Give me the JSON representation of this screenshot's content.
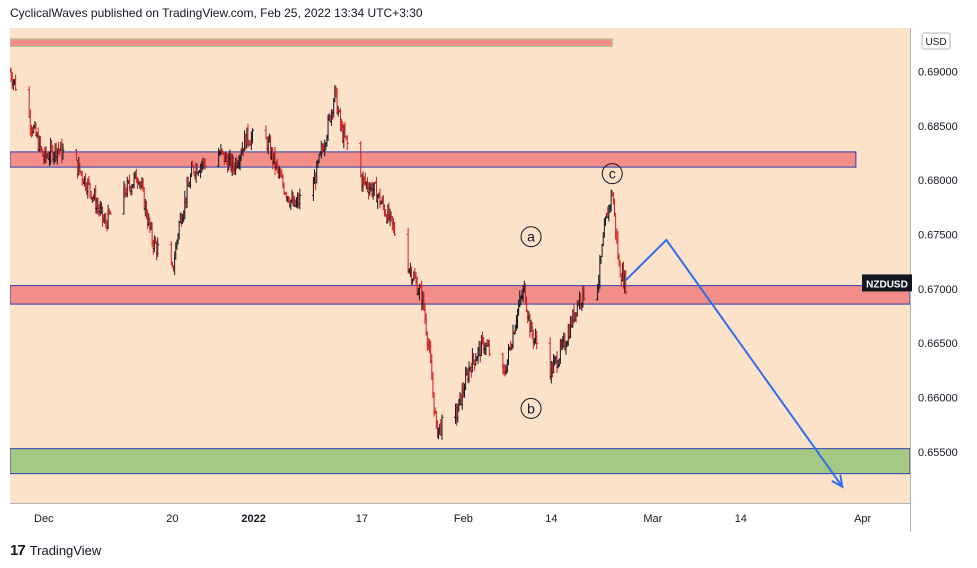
{
  "header": {
    "text": "CyclicalWaves published on TradingView.com, Feb 25, 2022 13:34 UTC+3:30"
  },
  "footer": {
    "brand": "TradingView",
    "logo_icon": "tradingview-logo-icon"
  },
  "colors": {
    "background": "#fbe2c8",
    "candle_up": "#131722",
    "candle_down": "#d21d1d",
    "resistance_zone": "#f28e87",
    "support_zone": "#a5c985",
    "zone_border": "#2c3cb3",
    "projection": "#2f6fef",
    "price_label_bg": "#131722"
  },
  "chart_data": {
    "type": "candlestick",
    "symbol_label": "NZDUSD",
    "currency_label": "USD",
    "y_ticks": [
      "0.69000",
      "0.68500",
      "0.68000",
      "0.67500",
      "0.67000",
      "0.66500",
      "0.66000",
      "0.65500"
    ],
    "ylim": [
      0.6503,
      0.694
    ],
    "x_ticks": [
      {
        "label": "Dec",
        "date": "2021-12-01"
      },
      {
        "label": "20",
        "date": "2021-12-20"
      },
      {
        "label": "2022",
        "date": "2022-01-01"
      },
      {
        "label": "17",
        "date": "2022-01-17"
      },
      {
        "label": "Feb",
        "date": "2022-02-01"
      },
      {
        "label": "14",
        "date": "2022-02-14"
      },
      {
        "label": "Mar",
        "date": "2022-03-01"
      },
      {
        "label": "14",
        "date": "2022-03-14"
      },
      {
        "label": "Apr",
        "date": "2022-04-01"
      }
    ],
    "xlim": [
      "2021-11-26",
      "2022-04-08"
    ],
    "price_path": [
      [
        "2021-11-26",
        0.69
      ],
      [
        "2021-11-29",
        0.6855
      ],
      [
        "2021-12-01",
        0.682
      ],
      [
        "2021-12-03",
        0.683
      ],
      [
        "2021-12-06",
        0.6812
      ],
      [
        "2021-12-08",
        0.679
      ],
      [
        "2021-12-10",
        0.676
      ],
      [
        "2021-12-13",
        0.679
      ],
      [
        "2021-12-15",
        0.6805
      ],
      [
        "2021-12-16",
        0.6775
      ],
      [
        "2021-12-17",
        0.6745
      ],
      [
        "2021-12-20",
        0.6715
      ],
      [
        "2021-12-21",
        0.676
      ],
      [
        "2021-12-23",
        0.681
      ],
      [
        "2021-12-27",
        0.6825
      ],
      [
        "2021-12-29",
        0.6812
      ],
      [
        "2021-12-31",
        0.684
      ],
      [
        "2022-01-03",
        0.6835
      ],
      [
        "2022-01-05",
        0.68
      ],
      [
        "2022-01-07",
        0.6775
      ],
      [
        "2022-01-10",
        0.68
      ],
      [
        "2022-01-12",
        0.685
      ],
      [
        "2022-01-13",
        0.688
      ],
      [
        "2022-01-14",
        0.6845
      ],
      [
        "2022-01-17",
        0.68
      ],
      [
        "2022-01-19",
        0.679
      ],
      [
        "2022-01-21",
        0.6765
      ],
      [
        "2022-01-24",
        0.672
      ],
      [
        "2022-01-26",
        0.669
      ],
      [
        "2022-01-27",
        0.664
      ],
      [
        "2022-01-28",
        0.657
      ],
      [
        "2022-01-31",
        0.6585
      ],
      [
        "2022-02-02",
        0.663
      ],
      [
        "2022-02-04",
        0.665
      ],
      [
        "2022-02-07",
        0.662
      ],
      [
        "2022-02-09",
        0.668
      ],
      [
        "2022-02-10",
        0.67
      ],
      [
        "2022-02-11",
        0.666
      ],
      [
        "2022-02-14",
        0.6625
      ],
      [
        "2022-02-16",
        0.665
      ],
      [
        "2022-02-18",
        0.669
      ],
      [
        "2022-02-21",
        0.671
      ],
      [
        "2022-02-22",
        0.676
      ],
      [
        "2022-02-23",
        0.679
      ],
      [
        "2022-02-24",
        0.672
      ],
      [
        "2022-02-25",
        0.6705
      ]
    ],
    "zones": [
      {
        "from": 0.6812,
        "to": 0.6826,
        "fill": "resistance_zone",
        "x_start": "2021-11-26",
        "x_end": "2022-03-31"
      },
      {
        "from": 0.6686,
        "to": 0.6703,
        "fill": "resistance_zone",
        "x_start": "2021-11-26",
        "x_end": "2022-04-08"
      },
      {
        "from": 0.653,
        "to": 0.6553,
        "fill": "support_zone",
        "x_start": "2021-11-26",
        "x_end": "2022-04-08"
      },
      {
        "from": 0.6923,
        "to": 0.693,
        "fill": "resistance_zone",
        "x_start": "2021-11-26",
        "x_end": "2022-02-23",
        "border": "support_zone"
      }
    ],
    "projection": [
      [
        "2022-02-25",
        0.6708
      ],
      [
        "2022-03-03",
        0.6745
      ],
      [
        "2022-03-29",
        0.6518
      ]
    ],
    "wave_labels": [
      {
        "text": "a",
        "date": "2022-02-11",
        "price": 0.6748
      },
      {
        "text": "b",
        "date": "2022-02-11",
        "price": 0.659
      },
      {
        "text": "c",
        "date": "2022-02-23",
        "price": 0.6806
      }
    ],
    "last_price": 0.6705
  }
}
